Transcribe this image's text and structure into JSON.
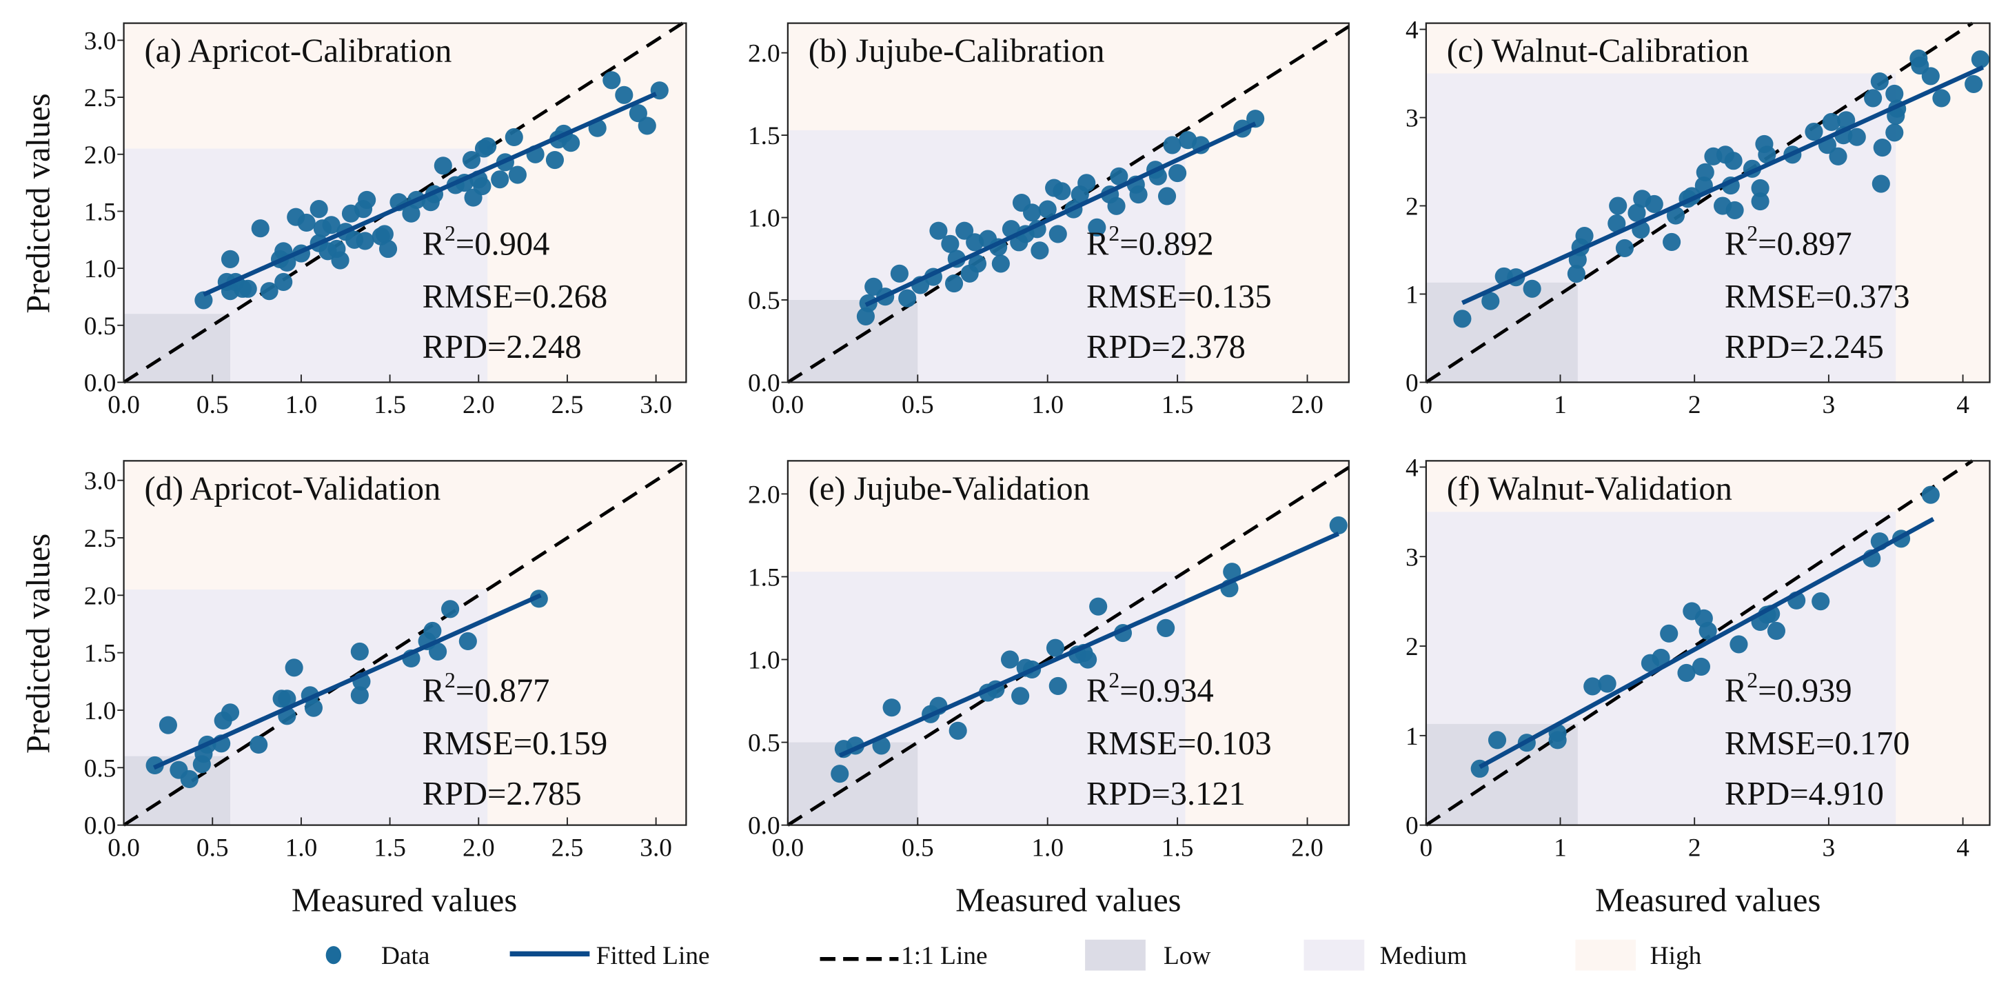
{
  "colors": {
    "point": "#1b6b9c",
    "fit": "#0b4a8a",
    "one_to_one": "#000000",
    "low": "#dcdce6",
    "medium": "#efedf5",
    "high": "#fdf6f2"
  },
  "axis_labels": {
    "y": "Predicted values",
    "x": "Measured values"
  },
  "legend": {
    "data": "Data",
    "fitted": "Fitted Line",
    "one_to_one": "1:1 Line",
    "low": "Low",
    "medium": "Medium",
    "high": "High"
  },
  "chart_data": [
    {
      "type": "scatter",
      "title": "(a) Apricot-Calibration",
      "r2_symbol": "R",
      "r2_sup": "2",
      "r2_value": "=0.904",
      "rmse": "RMSE=0.268",
      "rpd": "RPD=2.248",
      "xlim": [
        0,
        3.17
      ],
      "ylim": [
        0,
        3.15
      ],
      "xticks": [
        "0.0",
        "0.5",
        "1.0",
        "1.5",
        "2.0",
        "2.5",
        "3.0"
      ],
      "yticks": [
        "0.0",
        "0.5",
        "1.0",
        "1.5",
        "2.0",
        "2.5",
        "3.0"
      ],
      "low_max": 0.6,
      "medium_max": 2.05,
      "fit": [
        [
          0.45,
          0.77
        ],
        [
          3.0,
          2.53
        ]
      ],
      "points": [
        [
          0.45,
          0.72
        ],
        [
          0.58,
          0.88
        ],
        [
          0.6,
          1.08
        ],
        [
          0.6,
          0.8
        ],
        [
          0.63,
          0.88
        ],
        [
          0.67,
          0.82
        ],
        [
          0.7,
          0.82
        ],
        [
          0.77,
          1.35
        ],
        [
          0.82,
          0.8
        ],
        [
          0.88,
          1.08
        ],
        [
          0.9,
          0.88
        ],
        [
          0.9,
          1.15
        ],
        [
          0.92,
          1.05
        ],
        [
          0.97,
          1.45
        ],
        [
          1.0,
          1.13
        ],
        [
          1.03,
          1.4
        ],
        [
          1.1,
          1.52
        ],
        [
          1.1,
          1.22
        ],
        [
          1.12,
          1.35
        ],
        [
          1.15,
          1.15
        ],
        [
          1.17,
          1.38
        ],
        [
          1.2,
          1.17
        ],
        [
          1.22,
          1.07
        ],
        [
          1.25,
          1.32
        ],
        [
          1.28,
          1.48
        ],
        [
          1.3,
          1.25
        ],
        [
          1.35,
          1.52
        ],
        [
          1.37,
          1.6
        ],
        [
          1.36,
          1.24
        ],
        [
          1.45,
          1.28
        ],
        [
          1.47,
          1.3
        ],
        [
          1.49,
          1.17
        ],
        [
          1.55,
          1.58
        ],
        [
          1.62,
          1.48
        ],
        [
          1.65,
          1.6
        ],
        [
          1.73,
          1.58
        ],
        [
          1.75,
          1.65
        ],
        [
          1.8,
          1.9
        ],
        [
          1.87,
          1.73
        ],
        [
          1.92,
          1.75
        ],
        [
          1.96,
          1.95
        ],
        [
          1.97,
          1.62
        ],
        [
          2.0,
          1.78
        ],
        [
          2.02,
          1.72
        ],
        [
          2.03,
          2.05
        ],
        [
          2.05,
          2.07
        ],
        [
          2.12,
          1.78
        ],
        [
          2.15,
          1.93
        ],
        [
          2.2,
          2.15
        ],
        [
          2.22,
          1.82
        ],
        [
          2.32,
          2.0
        ],
        [
          2.43,
          1.95
        ],
        [
          2.45,
          2.13
        ],
        [
          2.48,
          2.18
        ],
        [
          2.52,
          2.1
        ],
        [
          2.67,
          2.23
        ],
        [
          2.75,
          2.65
        ],
        [
          2.82,
          2.52
        ],
        [
          2.9,
          2.36
        ],
        [
          2.95,
          2.25
        ],
        [
          3.02,
          2.56
        ]
      ]
    },
    {
      "type": "scatter",
      "title": "(b) Jujube-Calibration",
      "r2_symbol": "R",
      "r2_sup": "2",
      "r2_value": "=0.892",
      "rmse": "RMSE=0.135",
      "rpd": "RPD=2.378",
      "xlim": [
        0,
        2.16
      ],
      "ylim": [
        0,
        2.18
      ],
      "xticks": [
        "0.0",
        "0.5",
        "1.0",
        "1.5",
        "2.0"
      ],
      "yticks": [
        "0.0",
        "0.5",
        "1.0",
        "1.5",
        "2.0"
      ],
      "low_max": 0.5,
      "medium_max": 1.53,
      "fit": [
        [
          0.3,
          0.47
        ],
        [
          1.8,
          1.57
        ]
      ],
      "points": [
        [
          0.3,
          0.4
        ],
        [
          0.31,
          0.48
        ],
        [
          0.33,
          0.58
        ],
        [
          0.375,
          0.52
        ],
        [
          0.43,
          0.66
        ],
        [
          0.46,
          0.51
        ],
        [
          0.51,
          0.59
        ],
        [
          0.56,
          0.64
        ],
        [
          0.58,
          0.92
        ],
        [
          0.625,
          0.84
        ],
        [
          0.64,
          0.6
        ],
        [
          0.65,
          0.75
        ],
        [
          0.68,
          0.92
        ],
        [
          0.7,
          0.66
        ],
        [
          0.72,
          0.85
        ],
        [
          0.73,
          0.72
        ],
        [
          0.77,
          0.87
        ],
        [
          0.81,
          0.82
        ],
        [
          0.82,
          0.72
        ],
        [
          0.86,
          0.93
        ],
        [
          0.89,
          0.85
        ],
        [
          0.9,
          1.09
        ],
        [
          0.915,
          0.9
        ],
        [
          0.94,
          1.03
        ],
        [
          0.96,
          0.93
        ],
        [
          0.97,
          0.8
        ],
        [
          1.0,
          1.05
        ],
        [
          1.025,
          1.18
        ],
        [
          1.04,
          0.9
        ],
        [
          1.055,
          1.16
        ],
        [
          1.1,
          1.05
        ],
        [
          1.125,
          1.14
        ],
        [
          1.15,
          1.21
        ],
        [
          1.19,
          0.94
        ],
        [
          1.24,
          1.14
        ],
        [
          1.265,
          1.07
        ],
        [
          1.275,
          1.25
        ],
        [
          1.34,
          1.2
        ],
        [
          1.35,
          1.14
        ],
        [
          1.415,
          1.29
        ],
        [
          1.425,
          1.25
        ],
        [
          1.46,
          1.13
        ],
        [
          1.48,
          1.44
        ],
        [
          1.5,
          1.27
        ],
        [
          1.54,
          1.47
        ],
        [
          1.59,
          1.44
        ],
        [
          1.75,
          1.54
        ],
        [
          1.8,
          1.6
        ]
      ]
    },
    {
      "type": "scatter",
      "title": "(c) Walnut-Calibration",
      "r2_symbol": "R",
      "r2_sup": "2",
      "r2_value": "=0.897",
      "rmse": "RMSE=0.373",
      "rpd": "RPD=2.245",
      "xlim": [
        0,
        4.2
      ],
      "ylim": [
        0,
        4.07
      ],
      "xticks": [
        "0",
        "1",
        "2",
        "3",
        "4"
      ],
      "yticks": [
        "0",
        "1",
        "2",
        "3",
        "4"
      ],
      "low_max": 1.13,
      "medium_max": 3.5,
      "fit": [
        [
          0.27,
          0.9
        ],
        [
          4.15,
          3.57
        ]
      ],
      "points": [
        [
          0.27,
          0.72
        ],
        [
          0.48,
          0.92
        ],
        [
          0.58,
          1.2
        ],
        [
          0.67,
          1.19
        ],
        [
          0.79,
          1.06
        ],
        [
          1.12,
          1.23
        ],
        [
          1.13,
          1.39
        ],
        [
          1.15,
          1.53
        ],
        [
          1.18,
          1.66
        ],
        [
          1.42,
          1.8
        ],
        [
          1.43,
          2.0
        ],
        [
          1.48,
          1.52
        ],
        [
          1.57,
          1.92
        ],
        [
          1.6,
          1.73
        ],
        [
          1.61,
          2.08
        ],
        [
          1.7,
          2.02
        ],
        [
          1.83,
          1.59
        ],
        [
          1.86,
          1.89
        ],
        [
          1.95,
          2.08
        ],
        [
          1.98,
          2.11
        ],
        [
          2.07,
          2.23
        ],
        [
          2.08,
          2.38
        ],
        [
          2.14,
          2.56
        ],
        [
          2.21,
          2.0
        ],
        [
          2.23,
          2.58
        ],
        [
          2.27,
          2.23
        ],
        [
          2.3,
          1.95
        ],
        [
          2.29,
          2.51
        ],
        [
          2.43,
          2.42
        ],
        [
          2.49,
          2.05
        ],
        [
          2.49,
          2.2
        ],
        [
          2.52,
          2.7
        ],
        [
          2.54,
          2.58
        ],
        [
          2.73,
          2.58
        ],
        [
          2.89,
          2.84
        ],
        [
          2.99,
          2.69
        ],
        [
          3.02,
          2.95
        ],
        [
          3.07,
          2.56
        ],
        [
          3.11,
          2.8
        ],
        [
          3.13,
          2.97
        ],
        [
          3.21,
          2.78
        ],
        [
          3.33,
          3.22
        ],
        [
          3.38,
          3.41
        ],
        [
          3.39,
          2.25
        ],
        [
          3.4,
          2.66
        ],
        [
          3.49,
          3.27
        ],
        [
          3.5,
          3.02
        ],
        [
          3.49,
          2.83
        ],
        [
          3.51,
          3.1
        ],
        [
          3.67,
          3.67
        ],
        [
          3.68,
          3.59
        ],
        [
          3.76,
          3.47
        ],
        [
          3.84,
          3.22
        ],
        [
          4.08,
          3.38
        ],
        [
          4.13,
          3.66
        ]
      ]
    },
    {
      "type": "scatter",
      "title": "(d) Apricot-Validation",
      "r2_symbol": "R",
      "r2_sup": "2",
      "r2_value": "=0.877",
      "rmse": "RMSE=0.159",
      "rpd": "RPD=2.785",
      "xlim": [
        0,
        3.17
      ],
      "ylim": [
        0,
        3.17
      ],
      "xticks": [
        "0.0",
        "0.5",
        "1.0",
        "1.5",
        "2.0",
        "2.5",
        "3.0"
      ],
      "yticks": [
        "0.0",
        "0.5",
        "1.0",
        "1.5",
        "2.0",
        "2.5",
        "3.0"
      ],
      "low_max": 0.6,
      "medium_max": 2.05,
      "fit": [
        [
          0.17,
          0.5
        ],
        [
          2.35,
          2.0
        ]
      ],
      "points": [
        [
          0.175,
          0.52
        ],
        [
          0.25,
          0.87
        ],
        [
          0.31,
          0.48
        ],
        [
          0.37,
          0.4
        ],
        [
          0.44,
          0.53
        ],
        [
          0.45,
          0.62
        ],
        [
          0.47,
          0.7
        ],
        [
          0.55,
          0.71
        ],
        [
          0.56,
          0.91
        ],
        [
          0.6,
          0.98
        ],
        [
          0.76,
          0.7
        ],
        [
          0.89,
          1.1
        ],
        [
          0.92,
          0.95
        ],
        [
          0.92,
          1.1
        ],
        [
          0.96,
          1.37
        ],
        [
          1.05,
          1.13
        ],
        [
          1.07,
          1.02
        ],
        [
          1.33,
          1.51
        ],
        [
          1.33,
          1.13
        ],
        [
          1.34,
          1.25
        ],
        [
          1.62,
          1.45
        ],
        [
          1.71,
          1.6
        ],
        [
          1.74,
          1.69
        ],
        [
          1.77,
          1.51
        ],
        [
          1.84,
          1.88
        ],
        [
          1.94,
          1.6
        ],
        [
          2.34,
          1.97
        ]
      ]
    },
    {
      "type": "scatter",
      "title": "(e) Jujube-Validation",
      "r2_symbol": "R",
      "r2_sup": "2",
      "r2_value": "=0.934",
      "rmse": "RMSE=0.103",
      "rpd": "RPD=3.121",
      "xlim": [
        0,
        2.16
      ],
      "ylim": [
        0,
        2.2
      ],
      "xticks": [
        "0.0",
        "0.5",
        "1.0",
        "1.5",
        "2.0"
      ],
      "yticks": [
        "0.0",
        "0.5",
        "1.0",
        "1.5",
        "2.0"
      ],
      "low_max": 0.5,
      "medium_max": 1.53,
      "fit": [
        [
          0.2,
          0.42
        ],
        [
          2.12,
          1.76
        ]
      ],
      "points": [
        [
          0.2,
          0.31
        ],
        [
          0.215,
          0.46
        ],
        [
          0.26,
          0.48
        ],
        [
          0.36,
          0.48
        ],
        [
          0.4,
          0.71
        ],
        [
          0.55,
          0.67
        ],
        [
          0.58,
          0.72
        ],
        [
          0.655,
          0.57
        ],
        [
          0.77,
          0.8
        ],
        [
          0.8,
          0.82
        ],
        [
          0.855,
          1.0
        ],
        [
          0.895,
          0.78
        ],
        [
          0.915,
          0.95
        ],
        [
          0.94,
          0.94
        ],
        [
          1.03,
          1.07
        ],
        [
          1.04,
          0.84
        ],
        [
          1.115,
          1.03
        ],
        [
          1.14,
          1.04
        ],
        [
          1.155,
          1.0
        ],
        [
          1.195,
          1.32
        ],
        [
          1.29,
          1.16
        ],
        [
          1.455,
          1.19
        ],
        [
          1.7,
          1.43
        ],
        [
          1.71,
          1.53
        ],
        [
          2.12,
          1.81
        ]
      ]
    },
    {
      "type": "scatter",
      "title": "(f) Walnut-Validation",
      "r2_symbol": "R",
      "r2_sup": "2",
      "r2_value": "=0.939",
      "rmse": "RMSE=0.170",
      "rpd": "RPD=4.910",
      "xlim": [
        0,
        4.2
      ],
      "ylim": [
        0,
        4.07
      ],
      "xticks": [
        "0",
        "1",
        "2",
        "3",
        "4"
      ],
      "yticks": [
        "0",
        "1",
        "2",
        "3",
        "4"
      ],
      "low_max": 1.13,
      "medium_max": 3.5,
      "fit": [
        [
          0.4,
          0.65
        ],
        [
          3.78,
          3.42
        ]
      ],
      "points": [
        [
          0.4,
          0.63
        ],
        [
          0.53,
          0.95
        ],
        [
          0.75,
          0.92
        ],
        [
          0.98,
          1.03
        ],
        [
          0.98,
          0.95
        ],
        [
          1.24,
          1.55
        ],
        [
          1.35,
          1.58
        ],
        [
          1.67,
          1.81
        ],
        [
          1.75,
          1.87
        ],
        [
          1.81,
          2.14
        ],
        [
          1.94,
          1.7
        ],
        [
          1.98,
          2.39
        ],
        [
          2.05,
          1.77
        ],
        [
          2.07,
          2.31
        ],
        [
          2.1,
          2.17
        ],
        [
          2.33,
          2.02
        ],
        [
          2.49,
          2.27
        ],
        [
          2.54,
          2.35
        ],
        [
          2.57,
          2.36
        ],
        [
          2.61,
          2.17
        ],
        [
          2.76,
          2.51
        ],
        [
          2.94,
          2.5
        ],
        [
          3.32,
          2.98
        ],
        [
          3.38,
          3.17
        ],
        [
          3.54,
          3.2
        ],
        [
          3.76,
          3.69
        ]
      ]
    }
  ]
}
